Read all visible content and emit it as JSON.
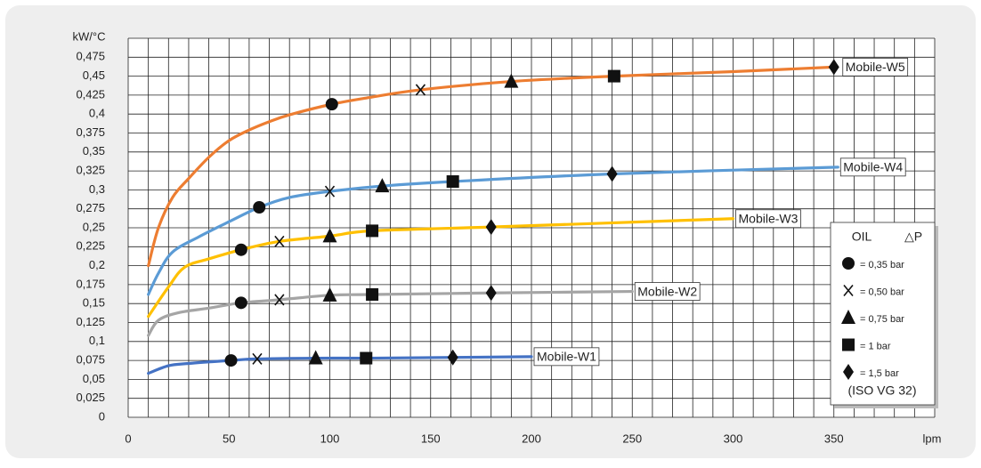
{
  "chart_data": {
    "type": "line",
    "y_label": "kW/°C",
    "x_label": "lpm",
    "xlim": [
      0,
      400
    ],
    "xticks": [
      0,
      50,
      100,
      150,
      200,
      250,
      300,
      350
    ],
    "ylim": [
      0,
      0.5
    ],
    "yticks": [
      0,
      {
        "value": 0.025,
        "label": "0,025"
      },
      {
        "value": 0.05,
        "label": "0,05"
      },
      {
        "value": 0.075,
        "label": "0,075"
      },
      {
        "value": 0.1,
        "label": "0,1"
      },
      {
        "value": 0.125,
        "label": "0,125"
      },
      {
        "value": 0.15,
        "label": "0,15"
      },
      {
        "value": 0.175,
        "label": "0,175"
      },
      {
        "value": 0.2,
        "label": "0,2"
      },
      {
        "value": 0.225,
        "label": "0,225"
      },
      {
        "value": 0.25,
        "label": "0,25"
      },
      {
        "value": 0.275,
        "label": "0,275"
      },
      {
        "value": 0.3,
        "label": "0,3"
      },
      {
        "value": 0.325,
        "label": "0,325"
      },
      {
        "value": 0.35,
        "label": "0,35"
      },
      {
        "value": 0.375,
        "label": "0,375"
      },
      {
        "value": 0.4,
        "label": "0,4"
      },
      {
        "value": 0.425,
        "label": "0,425"
      },
      {
        "value": 0.45,
        "label": "0,45"
      },
      {
        "value": 0.475,
        "label": "0,475"
      }
    ],
    "grid": {
      "x_step": 10
    },
    "series": [
      {
        "name": "Mobile-W1",
        "color": "#4472c4",
        "x": [
          10,
          20,
          30,
          51,
          64,
          93,
          118,
          161,
          200
        ],
        "values": [
          0.058,
          0.068,
          0.071,
          0.075,
          0.077,
          0.078,
          0.078,
          0.079,
          0.08
        ],
        "markers": {
          "x": [
            51,
            64,
            93,
            118,
            161
          ],
          "values": [
            0.075,
            0.077,
            0.078,
            0.078,
            0.079
          ]
        }
      },
      {
        "name": "Mobile-W2",
        "color": "#a5a5a5",
        "x": [
          10,
          15,
          25,
          40,
          56,
          75,
          100,
          121,
          180,
          250
        ],
        "values": [
          0.108,
          0.128,
          0.138,
          0.144,
          0.151,
          0.155,
          0.161,
          0.162,
          0.164,
          0.166
        ],
        "markers": {
          "x": [
            56,
            75,
            100,
            121,
            180
          ],
          "values": [
            0.151,
            0.155,
            0.161,
            0.162,
            0.164
          ]
        }
      },
      {
        "name": "Mobile-W3",
        "color": "#ffc000",
        "x": [
          10,
          20,
          28,
          40,
          56,
          75,
          100,
          121,
          180,
          300
        ],
        "values": [
          0.133,
          0.172,
          0.198,
          0.209,
          0.221,
          0.232,
          0.239,
          0.246,
          0.251,
          0.262
        ],
        "markers": {
          "x": [
            56,
            75,
            100,
            121,
            180
          ],
          "values": [
            0.221,
            0.232,
            0.239,
            0.246,
            0.251
          ]
        }
      },
      {
        "name": "Mobile-W4",
        "color": "#5b9bd5",
        "x": [
          10,
          15,
          22,
          35,
          50,
          65,
          80,
          100,
          126,
          161,
          240,
          352
        ],
        "values": [
          0.162,
          0.19,
          0.218,
          0.238,
          0.258,
          0.277,
          0.29,
          0.298,
          0.305,
          0.311,
          0.321,
          0.33
        ],
        "markers": {
          "x": [
            65,
            100,
            126,
            161,
            240
          ],
          "values": [
            0.277,
            0.298,
            0.305,
            0.311,
            0.321
          ]
        }
      },
      {
        "name": "Mobile-W5",
        "color": "#ed7d31",
        "x": [
          10,
          15,
          22,
          30,
          40,
          50,
          60,
          70,
          80,
          101,
          120,
          145,
          190,
          241,
          300,
          350
        ],
        "values": [
          0.2,
          0.25,
          0.29,
          0.315,
          0.343,
          0.365,
          0.379,
          0.39,
          0.399,
          0.413,
          0.422,
          0.432,
          0.443,
          0.45,
          0.456,
          0.462
        ],
        "markers": {
          "x": [
            101,
            145,
            190,
            241,
            350
          ],
          "values": [
            0.413,
            0.432,
            0.443,
            0.45,
            0.462
          ]
        }
      }
    ],
    "legend": {
      "title": "OIL",
      "symbol": "△P",
      "items": [
        {
          "shape": "circle",
          "label": "= 0,35 bar"
        },
        {
          "shape": "x",
          "label": "= 0,50 bar"
        },
        {
          "shape": "triangle",
          "label": "= 0,75 bar"
        },
        {
          "shape": "square",
          "label": "= 1 bar"
        },
        {
          "shape": "diamond",
          "label": "= 1,5 bar"
        }
      ],
      "note": "(ISO VG 32)"
    }
  }
}
